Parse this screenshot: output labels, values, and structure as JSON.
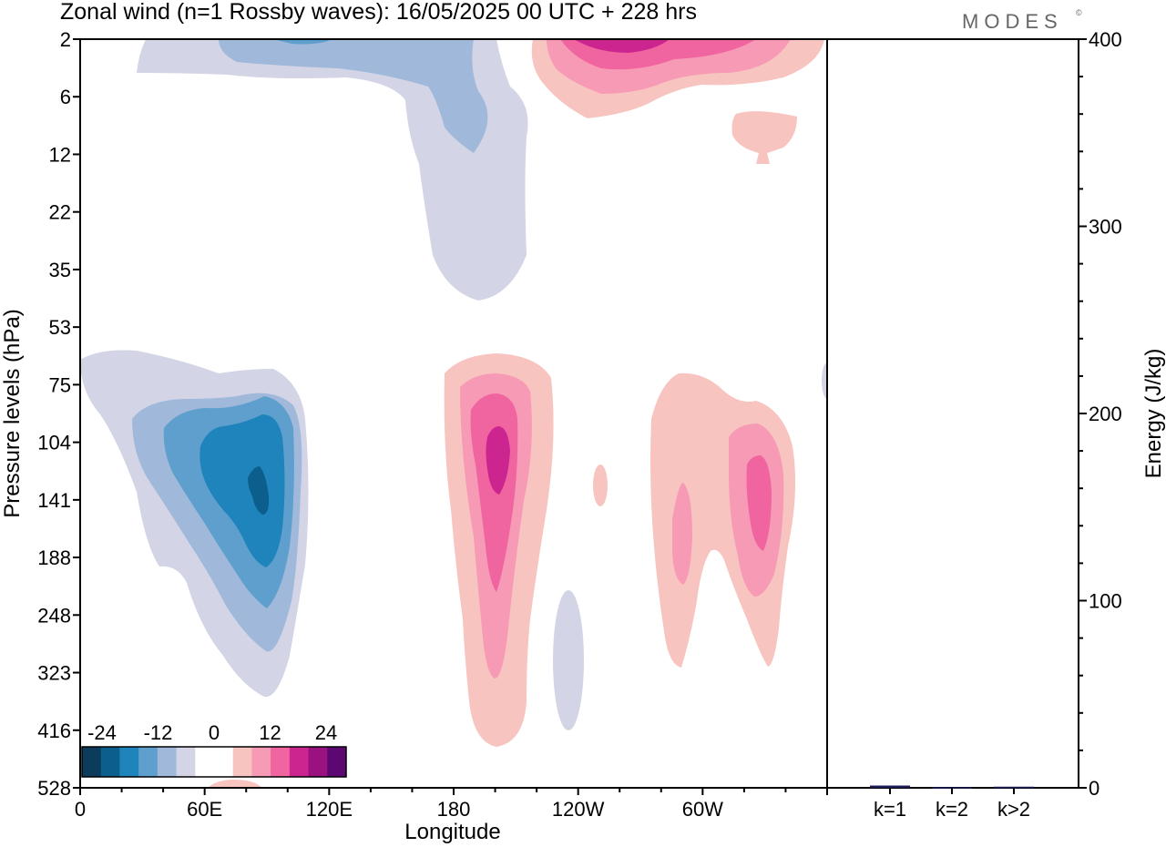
{
  "title": "Zonal wind (n=1 Rossby waves):  16/05/2025  00 UTC  + 228 hrs",
  "brand": "MODES",
  "brand_mark": "©",
  "chart_data": [
    {
      "type": "heatmap",
      "title": "Zonal wind (n=1 Rossby waves):  16/05/2025  00 UTC  + 228 hrs",
      "xlabel": "Longitude",
      "ylabel": "Pressure levels (hPa)",
      "x_ticks": [
        "0",
        "60E",
        "120E",
        "180",
        "120W",
        "60W"
      ],
      "y_ticks": [
        "2",
        "6",
        "12",
        "22",
        "35",
        "53",
        "75",
        "104",
        "141",
        "188",
        "248",
        "323",
        "416",
        "528"
      ],
      "colorbar": {
        "labels": [
          "-24",
          "-12",
          "0",
          "12",
          "24"
        ],
        "colors": [
          "#0b3c5c",
          "#0c5e8c",
          "#1f84bc",
          "#5e9fcd",
          "#a0b9da",
          "#d3d5e6",
          "#ffffff",
          "#ffffff",
          "#f8c4c0",
          "#f79ab6",
          "#f065a0",
          "#cc2590",
          "#9a1280",
          "#5c0772"
        ]
      },
      "contour_levels": [
        -24,
        -20,
        -16,
        -12,
        -8,
        -4,
        0,
        4,
        8,
        12,
        16,
        20,
        24
      ],
      "features": [
        {
          "sign": "negative",
          "lon": 95,
          "level": "141 hPa",
          "peak": -24
        },
        {
          "sign": "positive",
          "lon": 195,
          "level": "120 hPa",
          "peak": 20
        },
        {
          "sign": "positive",
          "lon": 280,
          "level": "141 hPa",
          "peak": 16
        },
        {
          "sign": "positive",
          "lon": 255,
          "level": "141 hPa",
          "peak": 8
        },
        {
          "sign": "negative",
          "lon": 160,
          "level": "2 hPa",
          "peak": -8
        },
        {
          "sign": "positive",
          "lon": 220,
          "level": "2 hPa",
          "peak": 20
        }
      ]
    },
    {
      "type": "bar",
      "categories": [
        "k=1",
        "k=2",
        "k>2"
      ],
      "values": [
        1.2,
        0.3,
        0.6
      ],
      "ylabel": "Energy (J/kg)",
      "ylim": [
        0,
        400
      ],
      "y_ticks": [
        "0",
        "100",
        "200",
        "300",
        "400"
      ],
      "bar_color": "#1c1c5a"
    }
  ]
}
